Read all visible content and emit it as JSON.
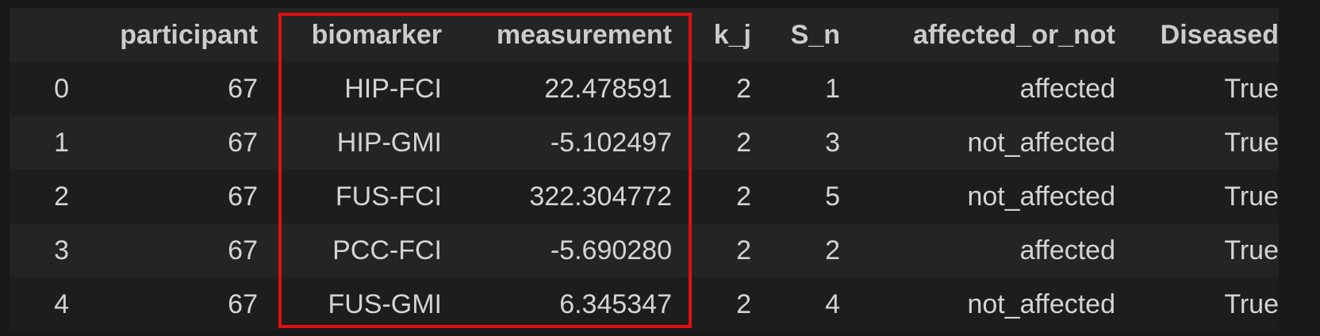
{
  "table": {
    "index_header": "",
    "columns": [
      "participant",
      "biomarker",
      "measurement",
      "k_j",
      "S_n",
      "affected_or_not",
      "Diseased"
    ],
    "rows": [
      {
        "index": "0",
        "participant": "67",
        "biomarker": "HIP-FCI",
        "measurement": "22.478591",
        "k_j": "2",
        "S_n": "1",
        "affected_or_not": "affected",
        "Diseased": "True"
      },
      {
        "index": "1",
        "participant": "67",
        "biomarker": "HIP-GMI",
        "measurement": "-5.102497",
        "k_j": "2",
        "S_n": "3",
        "affected_or_not": "not_affected",
        "Diseased": "True"
      },
      {
        "index": "2",
        "participant": "67",
        "biomarker": "FUS-FCI",
        "measurement": "322.304772",
        "k_j": "2",
        "S_n": "5",
        "affected_or_not": "not_affected",
        "Diseased": "True"
      },
      {
        "index": "3",
        "participant": "67",
        "biomarker": "PCC-FCI",
        "measurement": "-5.690280",
        "k_j": "2",
        "S_n": "2",
        "affected_or_not": "affected",
        "Diseased": "True"
      },
      {
        "index": "4",
        "participant": "67",
        "biomarker": "FUS-GMI",
        "measurement": "6.345347",
        "k_j": "2",
        "S_n": "4",
        "affected_or_not": "not_affected",
        "Diseased": "True"
      }
    ]
  },
  "highlight": {
    "color": "#e01010",
    "covers_columns": [
      "biomarker",
      "measurement"
    ]
  },
  "colors": {
    "background": "#181818",
    "row_light": "#242424",
    "row_dark": "#1d1d1d",
    "text": "#d4d4d4"
  }
}
